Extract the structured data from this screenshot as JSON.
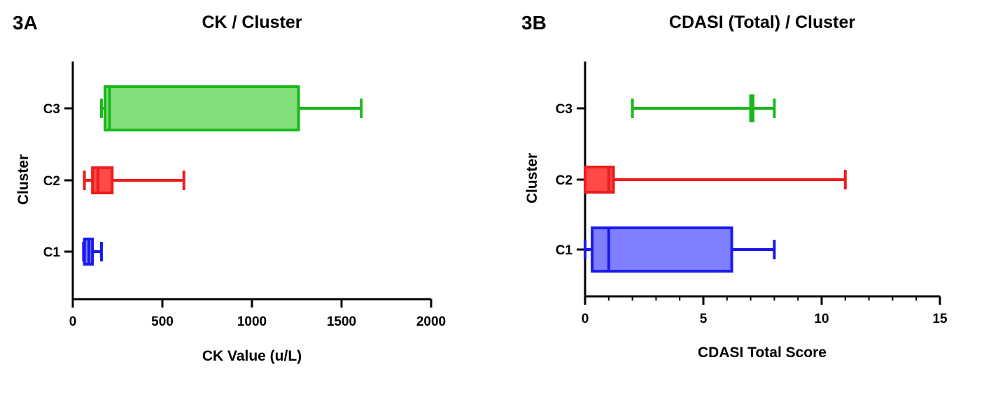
{
  "chart_data": [
    {
      "panel": "3A",
      "type": "box",
      "title": "CK / Cluster",
      "xlabel": "CK Value (u/L)",
      "ylabel": "Cluster",
      "xlim": [
        0,
        2000
      ],
      "xticks": [
        0,
        500,
        1000,
        1500,
        2000
      ],
      "minor_ticks": false,
      "orientation": "horizontal",
      "grid": false,
      "categories": [
        "C1",
        "C2",
        "C3"
      ],
      "boxes": [
        {
          "category": "C1",
          "color": "#1a1aee",
          "fill": "#7b7bff",
          "min": 60,
          "q1": 65,
          "median": 90,
          "q3": 110,
          "max": 160
        },
        {
          "category": "C2",
          "color": "#ee1c1c",
          "fill": "#ff4a4a",
          "min": 65,
          "q1": 110,
          "median": 140,
          "q3": 220,
          "max": 620
        },
        {
          "category": "C3",
          "color": "#1bb81b",
          "fill": "#82e07a",
          "min": 160,
          "q1": 180,
          "median": 205,
          "q3": 1260,
          "max": 1610
        }
      ]
    },
    {
      "panel": "3B",
      "type": "box",
      "title": "CDASI (Total) / Cluster",
      "xlabel": "CDASI Total Score",
      "ylabel": "Cluster",
      "xlim": [
        0,
        15
      ],
      "xticks": [
        0,
        5,
        10,
        15
      ],
      "minor_ticks": true,
      "orientation": "horizontal",
      "grid": false,
      "categories": [
        "C1",
        "C2",
        "C3"
      ],
      "boxes": [
        {
          "category": "C1",
          "color": "#1a1aee",
          "fill": "#7f7fff",
          "min": 0,
          "q1": 0.3,
          "median": 1,
          "q3": 6.2,
          "max": 8
        },
        {
          "category": "C2",
          "color": "#ee1c1c",
          "fill": "#ff4a4a",
          "min": 0,
          "q1": 0,
          "median": 1,
          "q3": 1.2,
          "max": 11
        },
        {
          "category": "C3",
          "color": "#1bb81b",
          "fill": "#82e07a",
          "min": 2,
          "q1": 7,
          "median": 7,
          "q3": 7.1,
          "max": 8
        }
      ]
    }
  ]
}
